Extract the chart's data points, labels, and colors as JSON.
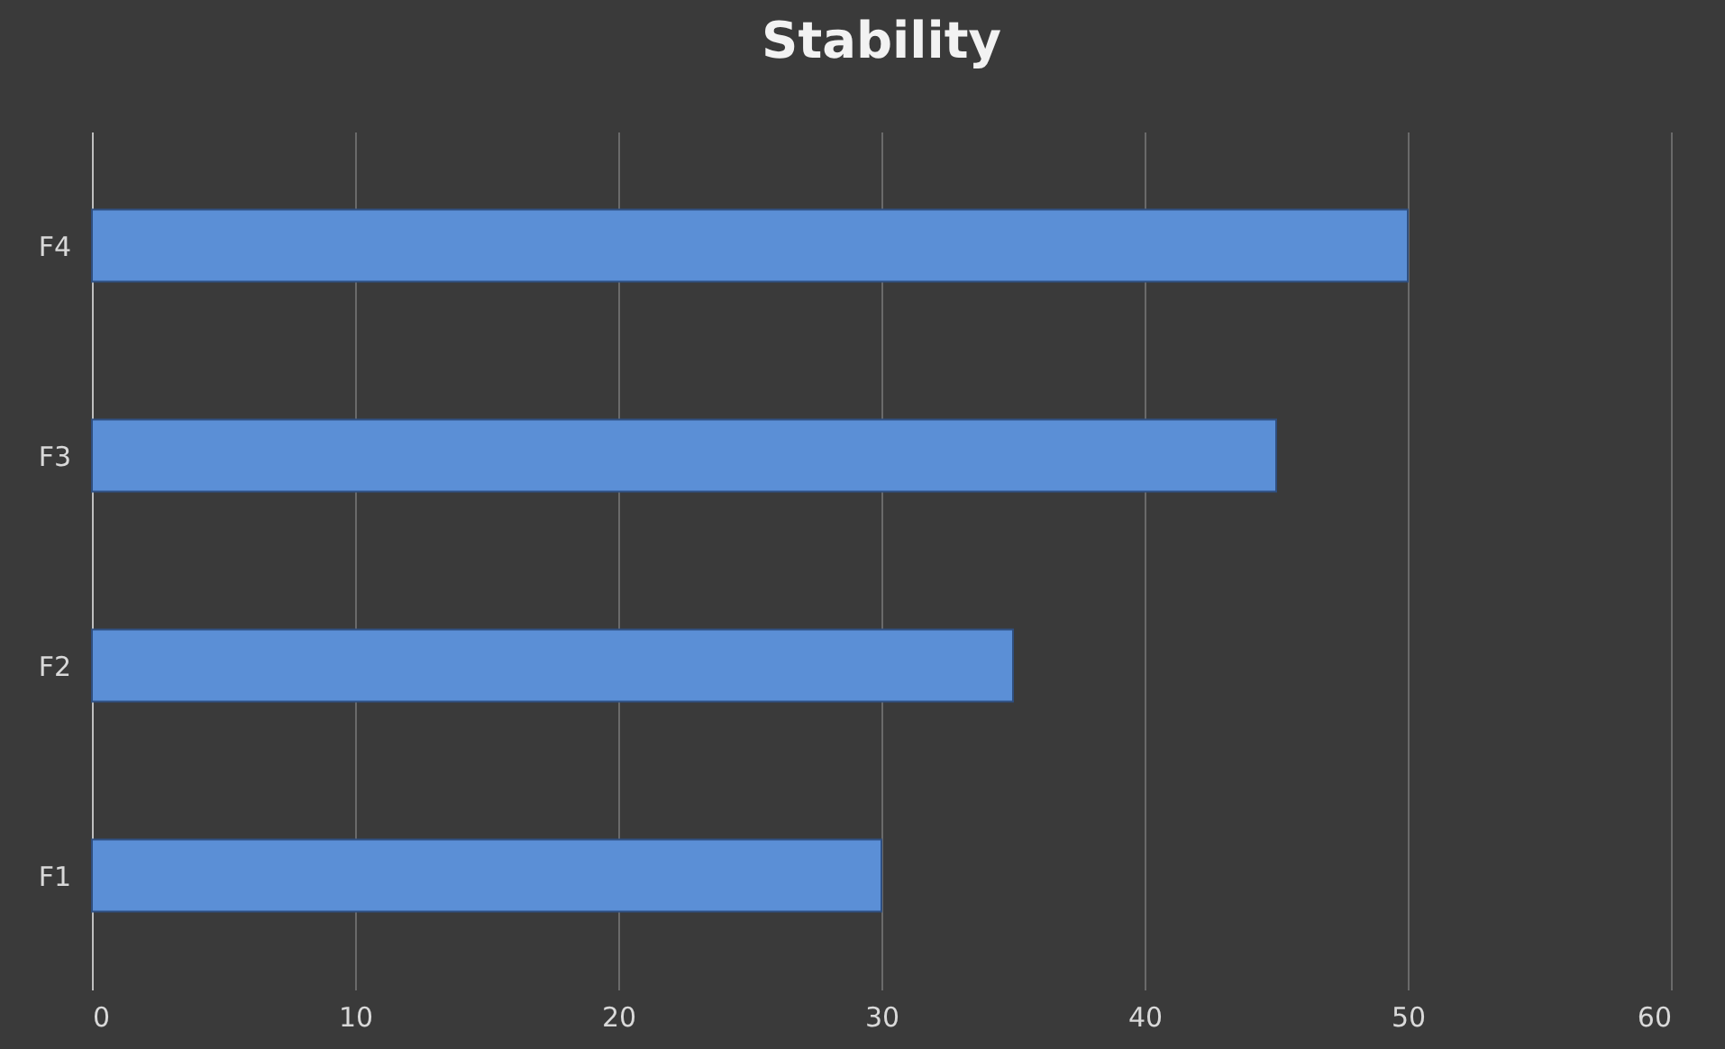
{
  "chart_data": {
    "type": "bar",
    "orientation": "horizontal",
    "title": "Stability",
    "categories": [
      "F4",
      "F3",
      "F2",
      "F1"
    ],
    "values": [
      50,
      45,
      35,
      30
    ],
    "color": "#5b8fd6",
    "xlim": [
      0,
      60
    ],
    "xticks": [
      0,
      10,
      20,
      30,
      40,
      50,
      60
    ],
    "grid": "x"
  }
}
